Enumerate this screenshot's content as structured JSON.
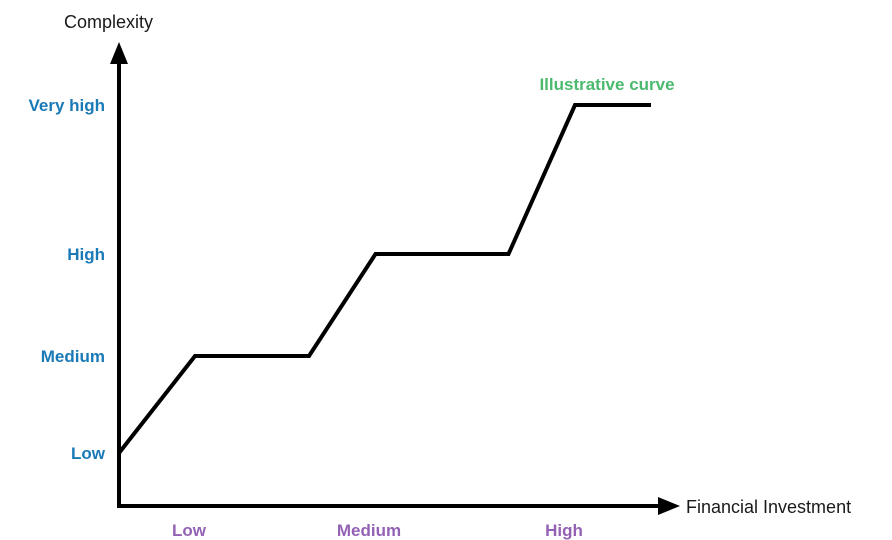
{
  "chart_data": {
    "type": "line",
    "title": "",
    "xlabel": "Financial Investment",
    "ylabel": "Complexity",
    "x_categories": [
      "Low",
      "Medium",
      "High"
    ],
    "y_categories": [
      "Low",
      "Medium",
      "High",
      "Very high"
    ],
    "annotation": "Illustrative curve",
    "grid": false,
    "series": [
      {
        "points": [
          {
            "x": 0.0,
            "y": 0
          },
          {
            "x": 0.4,
            "y": 1
          },
          {
            "x": 1.0,
            "y": 1
          },
          {
            "x": 1.35,
            "y": 2
          },
          {
            "x": 2.05,
            "y": 2
          },
          {
            "x": 2.4,
            "y": 3
          },
          {
            "x": 2.8,
            "y": 3
          }
        ]
      }
    ],
    "colors": {
      "axis": "#000000",
      "line": "#000000",
      "y_tick_labels": "#1a7ab8",
      "x_tick_labels": "#9462b5",
      "annotation": "#4cba6e",
      "axis_titles": "#1a1a1a"
    }
  }
}
